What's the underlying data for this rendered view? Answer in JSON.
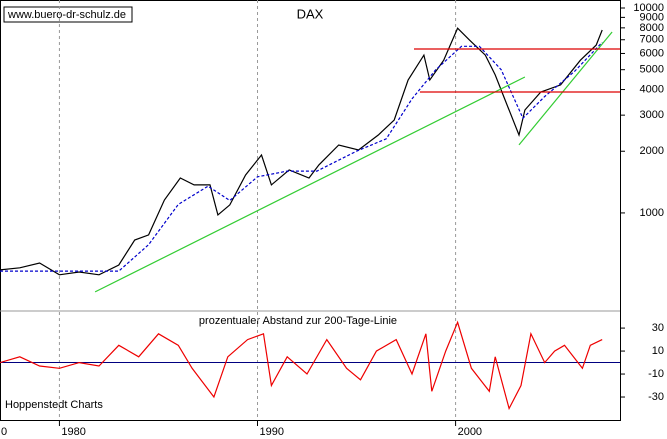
{
  "chart_data": [
    {
      "type": "line",
      "title": "DAX",
      "watermark": "www.buero-dr-schulz.de",
      "log_scale": true,
      "xlim": [
        1977,
        2008.3
      ],
      "xticks": [
        1980,
        1990,
        2000
      ],
      "grid": true,
      "edge_label": "0",
      "ylim": [
        336,
        10940
      ],
      "yticks": [
        1000,
        2000,
        3000,
        4000,
        5000,
        6000,
        7000,
        8000,
        9000,
        10000
      ],
      "series": [
        {
          "color": "#000000",
          "x": [
            1977.0,
            1978.0,
            1979.0,
            1980.0,
            1981.0,
            1982.0,
            1983.0,
            1983.8,
            1984.5,
            1985.3,
            1986.1,
            1986.8,
            1987.6,
            1988.0,
            1988.6,
            1989.4,
            1990.2,
            1990.7,
            1991.6,
            1992.6,
            1993.1,
            1994.1,
            1995.1,
            1996.1,
            1996.9,
            1997.6,
            1998.4,
            1998.7,
            1999.4,
            2000.1,
            2000.7,
            2001.5,
            2002.0,
            2002.5,
            2003.2,
            2003.5,
            2004.3,
            2005.3,
            2006.3,
            2007.1,
            2007.4
          ],
          "values": [
            527,
            540,
            570,
            499,
            515,
            499,
            557,
            738,
            781,
            1157,
            1481,
            1370,
            1370,
            978,
            1094,
            1532,
            1917,
            1370,
            1621,
            1481,
            1715,
            2146,
            2029,
            2401,
            2842,
            4453,
            5891,
            4453,
            5562,
            7966,
            6975,
            5891,
            4713,
            3555,
            2401,
            3179,
            3893,
            4214,
            5562,
            6590,
            7813
          ]
        },
        {
          "color": "#0000cc",
          "dashed": true,
          "x": [
            1977.0,
            1980.0,
            1983.0,
            1984.5,
            1986.0,
            1987.5,
            1988.6,
            1990.0,
            1991.5,
            1993.0,
            1995.0,
            1996.5,
            1997.8,
            1999.0,
            2000.3,
            2001.2,
            2002.3,
            2003.4,
            2004.5,
            2006.0,
            2007.4
          ],
          "values": [
            520,
            520,
            520,
            700,
            1100,
            1350,
            1150,
            1500,
            1600,
            1600,
            2000,
            2300,
            3600,
            5000,
            6500,
            6500,
            5000,
            2900,
            3700,
            4900,
            6800
          ]
        },
        {
          "color": "#33cc33",
          "x": [
            1981.8,
            2003.5
          ],
          "values": [
            412,
            4608
          ]
        },
        {
          "color": "#33cc33",
          "x": [
            2003.2,
            2007.9
          ],
          "values": [
            2148,
            7638
          ]
        },
        {
          "color": "#dd0000",
          "x": [
            1997.9,
            2008.3
          ],
          "values": [
            6310,
            6310
          ]
        },
        {
          "color": "#dd0000",
          "x": [
            1998.2,
            2008.3
          ],
          "values": [
            3890,
            3890
          ]
        }
      ]
    },
    {
      "type": "line",
      "title": "prozentualer Abstand zur 200-Tage-Linie",
      "source": "Hoppenstedt Charts",
      "xlim": [
        1977,
        2008.3
      ],
      "ylim": [
        -50,
        44
      ],
      "yticks": [
        30,
        10,
        -10,
        -30
      ],
      "zero_line_color": "#000080",
      "series": [
        {
          "color": "#ee0000",
          "x": [
            1977.0,
            1978.0,
            1979.0,
            1980.0,
            1981.0,
            1982.0,
            1983.0,
            1984.0,
            1985.0,
            1986.0,
            1986.7,
            1987.8,
            1988.5,
            1989.5,
            1990.3,
            1990.7,
            1991.5,
            1992.5,
            1993.5,
            1994.5,
            1995.2,
            1996.0,
            1997.0,
            1997.8,
            1998.5,
            1998.8,
            1999.5,
            2000.1,
            2000.8,
            2001.7,
            2002.0,
            2002.7,
            2003.3,
            2003.8,
            2004.5,
            2005.0,
            2005.5,
            2006.4,
            2006.8,
            2007.4
          ],
          "values": [
            0,
            5,
            -3,
            -5,
            0,
            -3,
            15,
            5,
            25,
            15,
            -5,
            -30,
            5,
            20,
            25,
            -20,
            5,
            -10,
            20,
            -5,
            -15,
            10,
            20,
            -10,
            25,
            -25,
            10,
            35,
            -5,
            -25,
            5,
            -40,
            -20,
            25,
            0,
            10,
            15,
            -5,
            15,
            20
          ]
        }
      ]
    }
  ]
}
